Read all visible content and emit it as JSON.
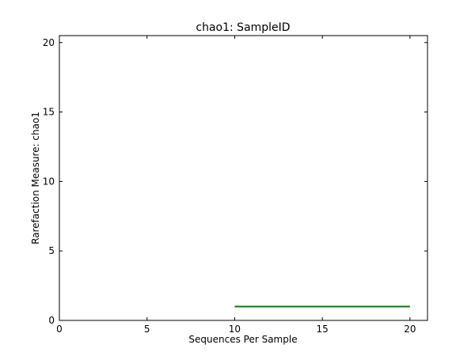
{
  "chart_data": {
    "type": "line",
    "title": "chao1: SampleID",
    "xlabel": "Sequences Per Sample",
    "ylabel": "Rarefaction Measure: chao1",
    "xlim": [
      0,
      21
    ],
    "ylim": [
      0,
      20.5
    ],
    "xticks": [
      0,
      5,
      10,
      15,
      20
    ],
    "yticks": [
      0,
      5,
      10,
      15,
      20
    ],
    "grid": false,
    "series": [
      {
        "color": "#008000",
        "x": [
          10,
          20
        ],
        "y": [
          1,
          1
        ]
      }
    ]
  }
}
